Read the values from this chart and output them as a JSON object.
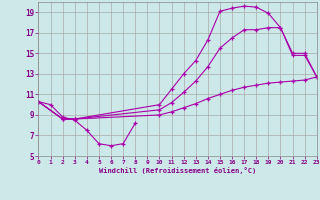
{
  "xlabel": "Windchill (Refroidissement éolien,°C)",
  "background_color": "#cce8e8",
  "grid_color": "#aaaaaa",
  "line_color": "#aa00aa",
  "xlim": [
    0,
    23
  ],
  "ylim": [
    5,
    20
  ],
  "xticks": [
    0,
    1,
    2,
    3,
    4,
    5,
    6,
    7,
    8,
    9,
    10,
    11,
    12,
    13,
    14,
    15,
    16,
    17,
    18,
    19,
    20,
    21,
    22,
    23
  ],
  "yticks": [
    5,
    7,
    9,
    11,
    13,
    15,
    17,
    19
  ],
  "line1_x": [
    0,
    1,
    2,
    3,
    4,
    5,
    6,
    7,
    8
  ],
  "line1_y": [
    10.3,
    10.0,
    8.8,
    8.5,
    7.5,
    6.2,
    6.0,
    6.2,
    8.2
  ],
  "line2_x": [
    0,
    2,
    3,
    10,
    11,
    12,
    13,
    14,
    15,
    16,
    17,
    18,
    19,
    20,
    21,
    22,
    23
  ],
  "line2_y": [
    10.3,
    8.6,
    8.6,
    10.0,
    11.5,
    13.0,
    14.3,
    16.3,
    19.1,
    19.4,
    19.6,
    19.5,
    18.9,
    17.5,
    14.8,
    14.8,
    12.7
  ],
  "line3_x": [
    0,
    2,
    3,
    10,
    11,
    12,
    13,
    14,
    15,
    16,
    17,
    18,
    19,
    20,
    21,
    22,
    23
  ],
  "line3_y": [
    10.3,
    8.6,
    8.6,
    9.5,
    10.2,
    11.2,
    12.3,
    13.7,
    15.5,
    16.5,
    17.3,
    17.3,
    17.5,
    17.5,
    15.0,
    15.0,
    12.7
  ],
  "line4_x": [
    0,
    2,
    3,
    10,
    11,
    12,
    13,
    14,
    15,
    16,
    17,
    18,
    19,
    20,
    21,
    22,
    23
  ],
  "line4_y": [
    10.3,
    8.6,
    8.6,
    9.0,
    9.3,
    9.7,
    10.1,
    10.6,
    11.0,
    11.4,
    11.7,
    11.9,
    12.1,
    12.2,
    12.3,
    12.4,
    12.7
  ]
}
